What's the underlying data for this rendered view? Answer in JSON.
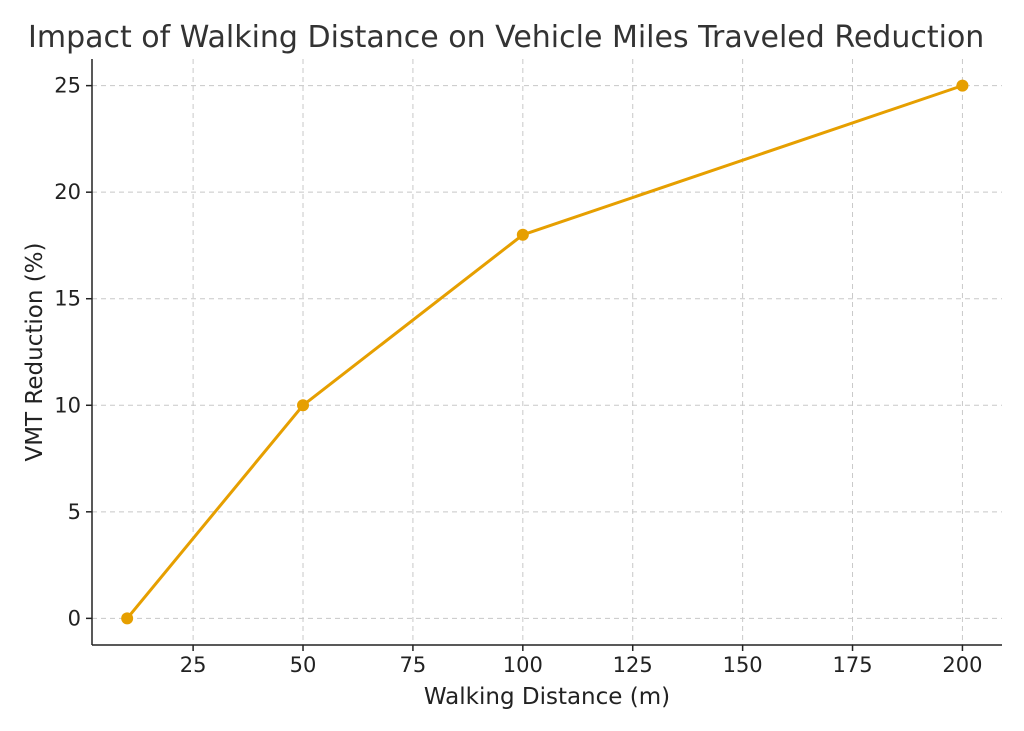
{
  "chart_data": {
    "type": "line",
    "title": "Impact of Walking Distance on Vehicle Miles Traveled Reduction",
    "xlabel": "Walking Distance (m)",
    "ylabel": "VMT Reduction (%)",
    "x": [
      10,
      50,
      100,
      200
    ],
    "series": [
      {
        "values": [
          0,
          10,
          18,
          25
        ],
        "color": "#E69F00",
        "marker": "circle"
      }
    ],
    "xlim": [
      2,
      209
    ],
    "ylim": [
      -1.25,
      26.25
    ],
    "xticks": [
      25,
      50,
      75,
      100,
      125,
      150,
      175,
      200
    ],
    "yticks": [
      0,
      5,
      10,
      15,
      20,
      25
    ],
    "grid": true,
    "legend": "none"
  }
}
